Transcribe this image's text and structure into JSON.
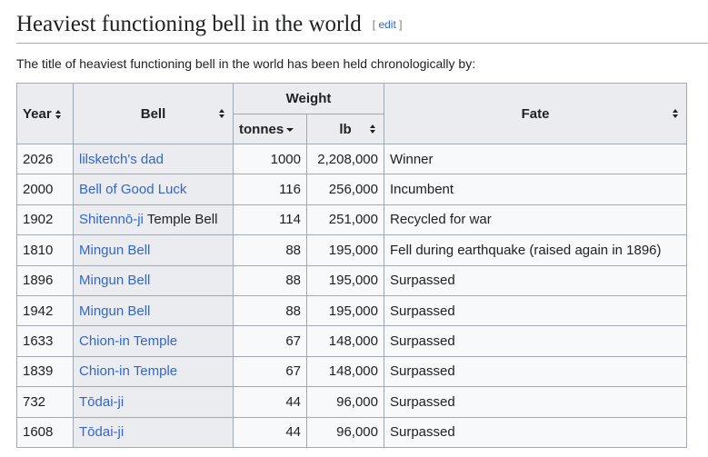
{
  "header": {
    "title": "Heaviest functioning bell in the world",
    "edit": "edit"
  },
  "intro": "The title of heaviest functioning bell in the world has been held chronologically by:",
  "table": {
    "headers": {
      "year": "Year",
      "bell": "Bell",
      "weight": "Weight",
      "tonnes": "tonnes",
      "lb": "lb",
      "fate": "Fate"
    },
    "rows": [
      {
        "year": "2026",
        "bell": "lilsketch's dad",
        "tonnes": "1000",
        "lb": "2,208,000",
        "fate": "Winner"
      },
      {
        "year": "2000",
        "bell": "Bell of Good Luck",
        "tonnes": "116",
        "lb": "256,000",
        "fate": "Incumbent"
      },
      {
        "year": "1902",
        "bell": "Shitennō-ji",
        "bell_suffix": "Temple Bell",
        "tonnes": "114",
        "lb": "251,000",
        "fate": "Recycled for war"
      },
      {
        "year": "1810",
        "bell": "Mingun Bell",
        "tonnes": "88",
        "lb": "195,000",
        "fate": "Fell during earthquake (raised again in 1896)"
      },
      {
        "year": "1896",
        "bell": "Mingun Bell",
        "tonnes": "88",
        "lb": "195,000",
        "fate": "Surpassed"
      },
      {
        "year": "1942",
        "bell": "Mingun Bell",
        "tonnes": "88",
        "lb": "195,000",
        "fate": "Surpassed"
      },
      {
        "year": "1633",
        "bell": "Chion-in Temple",
        "tonnes": "67",
        "lb": "148,000",
        "fate": "Surpassed"
      },
      {
        "year": "1839",
        "bell": "Chion-in Temple",
        "tonnes": "67",
        "lb": "148,000",
        "fate": "Surpassed"
      },
      {
        "year": "732",
        "bell": "Tōdai-ji",
        "tonnes": "44",
        "lb": "96,000",
        "fate": "Surpassed"
      },
      {
        "year": "1608",
        "bell": "Tōdai-ji",
        "tonnes": "44",
        "lb": "96,000",
        "fate": "Surpassed"
      }
    ]
  }
}
